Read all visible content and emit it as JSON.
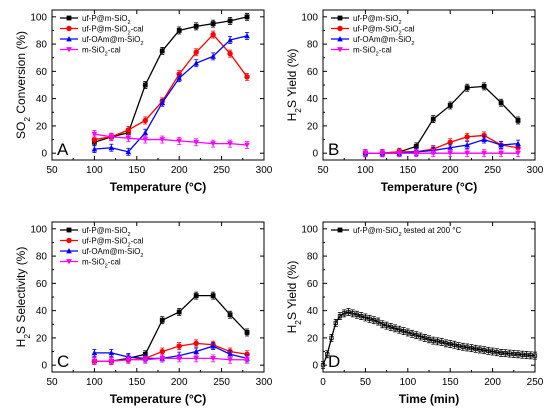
{
  "chart_data": [
    {
      "panel_letter": "A",
      "type": "line",
      "xlabel": "Temperature (°C)",
      "ylabel": "SO2 Conversion (%)",
      "ylabel_parts": [
        {
          "t": "SO"
        },
        {
          "t": "2",
          "sub": true
        },
        {
          "t": " Conversion (%)"
        }
      ],
      "xlim": [
        50,
        300
      ],
      "ylim": [
        -5,
        105
      ],
      "xticks": [
        50,
        100,
        150,
        200,
        250,
        300
      ],
      "yticks": [
        0,
        20,
        40,
        60,
        80,
        100
      ],
      "legend": "top-left",
      "x": [
        100,
        120,
        140,
        160,
        180,
        200,
        220,
        240,
        260,
        280
      ],
      "series": [
        {
          "name": "uf-P@m-SiO2",
          "name_parts": [
            {
              "t": "uf-P@m-SiO"
            },
            {
              "t": "2",
              "sub": true
            }
          ],
          "color": "#000000",
          "marker": "square",
          "values": [
            8,
            12,
            15,
            50,
            75,
            90,
            93,
            95,
            97,
            100
          ]
        },
        {
          "name": "uf-P@m-SiO2-cal",
          "name_parts": [
            {
              "t": "uf-P@m-SiO"
            },
            {
              "t": "2",
              "sub": true
            },
            {
              "t": "-cal"
            }
          ],
          "color": "#ff0000",
          "marker": "circle",
          "values": [
            10,
            12,
            17,
            24,
            38,
            58,
            74,
            87,
            73,
            56
          ]
        },
        {
          "name": "uf-OAm@m-SiO2",
          "name_parts": [
            {
              "t": "uf-OAm@m-SiO"
            },
            {
              "t": "2",
              "sub": true
            }
          ],
          "color": "#0000ff",
          "marker": "triangle-up",
          "values": [
            3,
            4,
            1,
            15,
            37,
            55,
            66,
            71,
            83,
            86
          ]
        },
        {
          "name": "m-SiO2-cal",
          "name_parts": [
            {
              "t": "m-SiO"
            },
            {
              "t": "2",
              "sub": true
            },
            {
              "t": "-cal"
            }
          ],
          "color": "#ff00ff",
          "marker": "triangle-down",
          "values": [
            14,
            12,
            11,
            10,
            10,
            9,
            8,
            7,
            7,
            6
          ]
        }
      ]
    },
    {
      "panel_letter": "B",
      "type": "line",
      "xlabel": "Temperature (°C)",
      "ylabel": "H2S Yield (%)",
      "ylabel_parts": [
        {
          "t": "H"
        },
        {
          "t": "2",
          "sub": true
        },
        {
          "t": "S Yield (%)"
        }
      ],
      "xlim": [
        50,
        300
      ],
      "ylim": [
        -5,
        105
      ],
      "xticks": [
        50,
        100,
        150,
        200,
        250,
        300
      ],
      "yticks": [
        0,
        20,
        40,
        60,
        80,
        100
      ],
      "legend": "top-left",
      "x": [
        100,
        120,
        140,
        160,
        180,
        200,
        220,
        240,
        260,
        280
      ],
      "series": [
        {
          "name": "uf-P@m-SiO2",
          "name_parts": [
            {
              "t": "uf-P@m-SiO"
            },
            {
              "t": "2",
              "sub": true
            }
          ],
          "color": "#000000",
          "marker": "square",
          "values": [
            0,
            0,
            1,
            5,
            25,
            35,
            48,
            49,
            37,
            24
          ]
        },
        {
          "name": "uf-P@m-SiO2-cal",
          "name_parts": [
            {
              "t": "uf-P@m-SiO"
            },
            {
              "t": "2",
              "sub": true
            },
            {
              "t": "-cal"
            }
          ],
          "color": "#ff0000",
          "marker": "circle",
          "values": [
            0,
            0,
            1,
            1,
            3,
            8,
            12,
            13,
            6,
            4
          ]
        },
        {
          "name": "uf-OAm@m-SiO2",
          "name_parts": [
            {
              "t": "uf-OAm@m-SiO"
            },
            {
              "t": "2",
              "sub": true
            }
          ],
          "color": "#0000ff",
          "marker": "triangle-up",
          "values": [
            0,
            0,
            0,
            1,
            2,
            4,
            6,
            10,
            6,
            7
          ]
        },
        {
          "name": "m-SiO2-cal",
          "name_parts": [
            {
              "t": "m-SiO"
            },
            {
              "t": "2",
              "sub": true
            },
            {
              "t": "-cal"
            }
          ],
          "color": "#ff00ff",
          "marker": "triangle-down",
          "values": [
            0,
            0,
            0,
            0,
            0,
            0,
            0,
            0,
            0,
            0
          ]
        }
      ]
    },
    {
      "panel_letter": "C",
      "type": "line",
      "xlabel": "Temperature (°C)",
      "ylabel": "H2S Selectivity (%)",
      "ylabel_parts": [
        {
          "t": "H"
        },
        {
          "t": "2",
          "sub": true
        },
        {
          "t": "S Selectivity (%)"
        }
      ],
      "xlim": [
        50,
        300
      ],
      "ylim": [
        -5,
        105
      ],
      "xticks": [
        50,
        100,
        150,
        200,
        250,
        300
      ],
      "yticks": [
        0,
        20,
        40,
        60,
        80,
        100
      ],
      "legend": "top-left",
      "x": [
        100,
        120,
        140,
        160,
        180,
        200,
        220,
        240,
        260,
        280
      ],
      "series": [
        {
          "name": "uf-P@m-SiO2",
          "name_parts": [
            {
              "t": "uf-P@m-SiO"
            },
            {
              "t": "2",
              "sub": true
            }
          ],
          "color": "#000000",
          "marker": "square",
          "values": [
            3,
            3,
            5,
            8,
            33,
            39,
            51,
            51,
            37,
            24
          ]
        },
        {
          "name": "uf-P@m-SiO2-cal",
          "name_parts": [
            {
              "t": "uf-P@m-SiO"
            },
            {
              "t": "2",
              "sub": true
            },
            {
              "t": "-cal"
            }
          ],
          "color": "#ff0000",
          "marker": "circle",
          "values": [
            3,
            3,
            4,
            5,
            10,
            14,
            16,
            15,
            10,
            8
          ]
        },
        {
          "name": "uf-OAm@m-SiO2",
          "name_parts": [
            {
              "t": "uf-OAm@m-SiO"
            },
            {
              "t": "2",
              "sub": true
            }
          ],
          "color": "#0000ff",
          "marker": "triangle-up",
          "values": [
            9,
            9,
            6,
            5,
            5,
            7,
            10,
            14,
            8,
            5
          ]
        },
        {
          "name": "m-SiO2-cal",
          "name_parts": [
            {
              "t": "m-SiO"
            },
            {
              "t": "2",
              "sub": true
            },
            {
              "t": "-cal"
            }
          ],
          "color": "#ff00ff",
          "marker": "triangle-down",
          "values": [
            3,
            3,
            4,
            4,
            5,
            5,
            5,
            5,
            4,
            4
          ]
        }
      ]
    },
    {
      "panel_letter": "D",
      "type": "line",
      "xlabel": "Time (min)",
      "ylabel": "H2S Yield (%)",
      "ylabel_parts": [
        {
          "t": "H"
        },
        {
          "t": "2",
          "sub": true
        },
        {
          "t": "S Yield (%)"
        }
      ],
      "xlim": [
        0,
        250
      ],
      "ylim": [
        -5,
        105
      ],
      "xticks": [
        0,
        50,
        100,
        150,
        200,
        250
      ],
      "yticks": [
        0,
        20,
        40,
        60,
        80,
        100
      ],
      "legend": "top-left",
      "x": [
        0,
        5,
        10,
        15,
        20,
        25,
        30,
        35,
        40,
        45,
        50,
        55,
        60,
        65,
        70,
        75,
        80,
        85,
        90,
        95,
        100,
        105,
        110,
        115,
        120,
        125,
        130,
        135,
        140,
        145,
        150,
        155,
        160,
        165,
        170,
        175,
        180,
        185,
        190,
        195,
        200,
        205,
        210,
        215,
        220,
        225,
        230,
        235,
        240,
        245,
        250
      ],
      "series": [
        {
          "name": "uf-P@m-SiO2 tested at 200 °C",
          "name_parts": [
            {
              "t": "uf-P@m-SiO"
            },
            {
              "t": "2",
              "sub": true
            },
            {
              "t": " tested at 200 °C"
            }
          ],
          "color": "#000000",
          "marker": "square",
          "values": [
            0,
            8,
            20,
            31,
            36,
            38,
            39,
            38,
            37,
            36,
            35,
            34,
            33,
            32,
            30,
            29,
            28,
            27,
            26,
            25,
            24,
            23,
            22,
            21,
            20,
            19,
            18,
            17.5,
            17,
            16,
            15.5,
            15,
            14,
            13.5,
            13,
            12.5,
            12,
            11.5,
            11,
            10.5,
            10,
            9.5,
            9,
            8.8,
            8.5,
            8.2,
            8,
            7.7,
            7.5,
            7.2,
            7
          ]
        }
      ]
    }
  ]
}
